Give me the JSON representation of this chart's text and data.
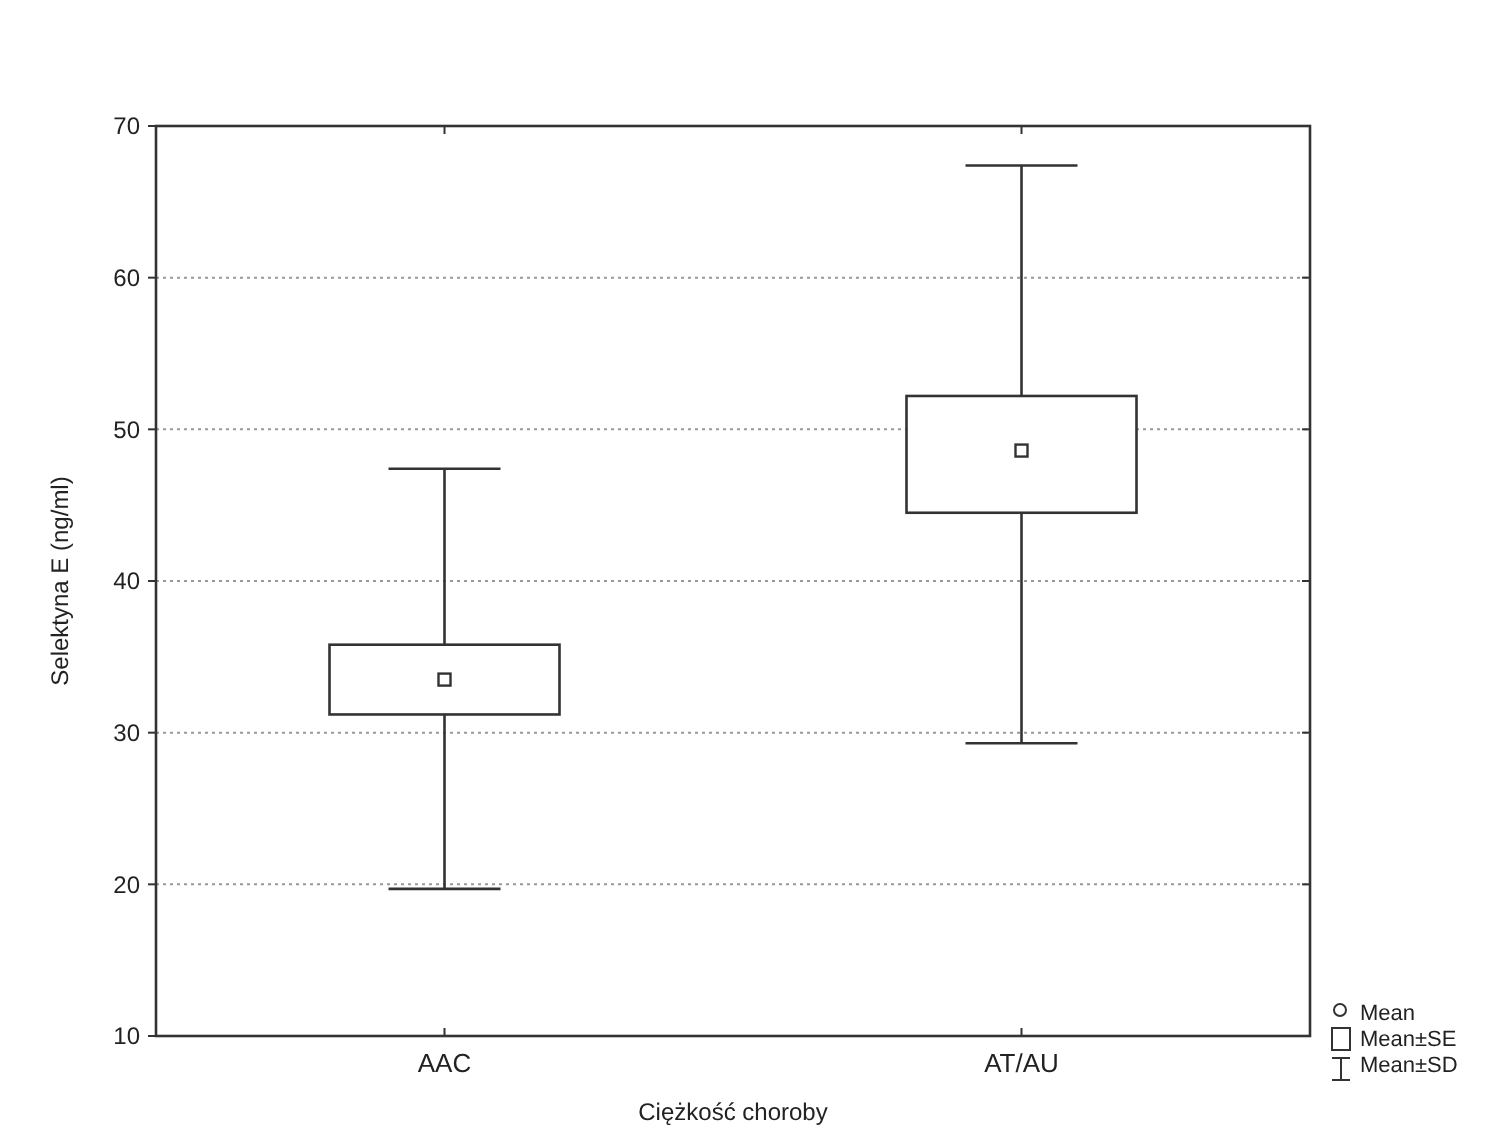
{
  "chart_data": {
    "type": "box",
    "xlabel": "Ciężkość choroby",
    "ylabel": "Selektyna E (ng/ml)",
    "categories": [
      "AAC",
      "AT/AU"
    ],
    "boxes": [
      {
        "low": 19.7,
        "q1": 31.2,
        "q3": 35.8,
        "high": 47.4,
        "mean": 33.5
      },
      {
        "low": 29.3,
        "q1": 44.5,
        "q3": 52.2,
        "high": 67.4,
        "mean": 48.6
      }
    ],
    "ylim": [
      10,
      70
    ],
    "yticks": [
      10,
      20,
      30,
      40,
      50,
      60,
      70
    ],
    "grid": "y",
    "annotations": [
      "Mean",
      "Mean±SE",
      "Mean±SD"
    ]
  }
}
